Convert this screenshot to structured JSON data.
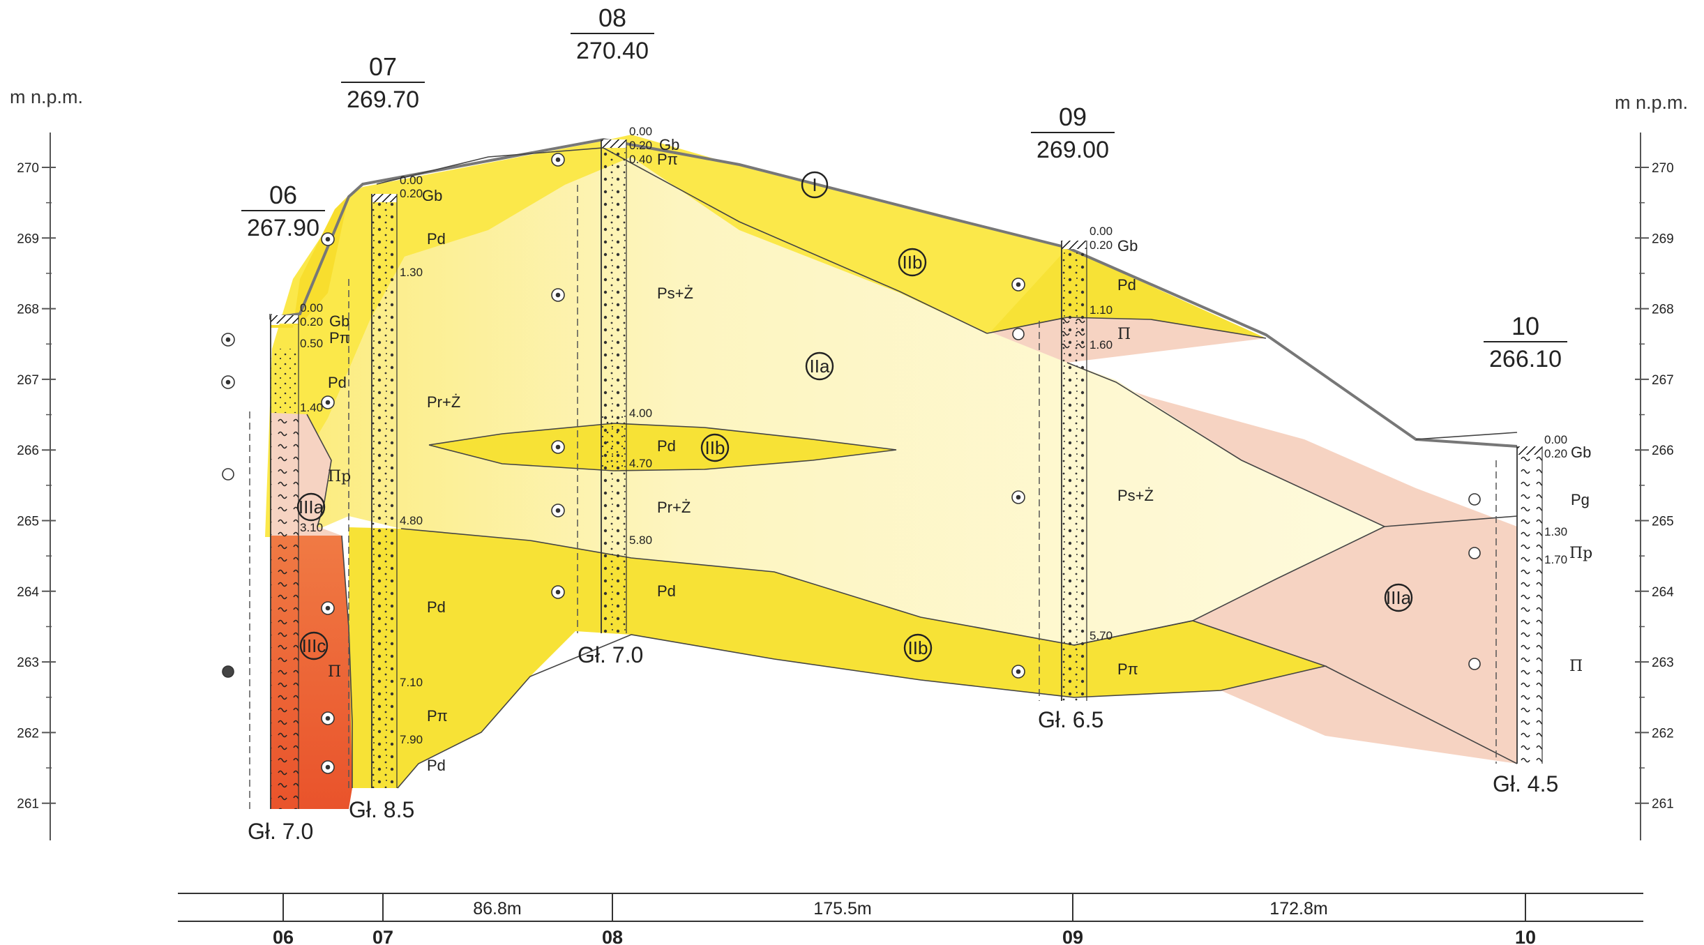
{
  "axis": {
    "unit_left": "m n.p.m.",
    "unit_right": "m n.p.m.",
    "ticks": [
      "270",
      "269",
      "268",
      "267",
      "266",
      "265",
      "264",
      "263",
      "262",
      "261"
    ]
  },
  "boreholes": [
    {
      "id": "06",
      "elevation": "267.90",
      "final_depth": "Gł. 7.0",
      "depths": [
        "0.00",
        "0.20",
        "0.50",
        "1.40",
        "3.10"
      ],
      "soils": [
        "Gb",
        "Pπ",
        "Pd",
        "Πp",
        "Π"
      ]
    },
    {
      "id": "07",
      "elevation": "269.70",
      "final_depth": "Gł. 8.5",
      "depths": [
        "0.00",
        "0.20",
        "1.30",
        "4.80",
        "7.10",
        "7.90"
      ],
      "soils": [
        "Gb",
        "Pd",
        "Pr+Ż",
        "Pd",
        "Pπ",
        "Pd"
      ]
    },
    {
      "id": "08",
      "elevation": "270.40",
      "final_depth": "Gł. 7.0",
      "depths": [
        "0.00",
        "0.20",
        "0.40",
        "4.00",
        "4.70",
        "5.80"
      ],
      "soils": [
        "Gb",
        "Pπ",
        "Ps+Ż",
        "Pd",
        "Pr+Ż",
        "Pd"
      ]
    },
    {
      "id": "09",
      "elevation": "269.00",
      "final_depth": "Gł. 6.5",
      "depths": [
        "0.00",
        "0.20",
        "1.10",
        "1.60",
        "5.70"
      ],
      "soils": [
        "Gb",
        "Pd",
        "Π",
        "Ps+Ż",
        "Pπ"
      ]
    },
    {
      "id": "10",
      "elevation": "266.10",
      "final_depth": "Gł. 4.5",
      "depths": [
        "0.00",
        "0.20",
        "1.30",
        "1.70"
      ],
      "soils": [
        "Gb",
        "Pg",
        "Πp",
        "Π"
      ]
    }
  ],
  "layer_labels": [
    "I",
    "IIb",
    "IIa",
    "IIb",
    "IIIa",
    "IIIc",
    "IIb",
    "IIIa"
  ],
  "distance_bar": {
    "segments": [
      "86.8m",
      "175.5m",
      "172.8m"
    ],
    "labels": [
      "06",
      "07",
      "08",
      "09",
      "10"
    ]
  },
  "colors": {
    "layer_I": "#fbe84a",
    "layer_IIa": "#fdf6c6",
    "layer_IIb": "#f7e236",
    "layer_IIIa": "#f6d3c2",
    "layer_IIIc": "#ea5b2e",
    "axis": "#555555"
  }
}
